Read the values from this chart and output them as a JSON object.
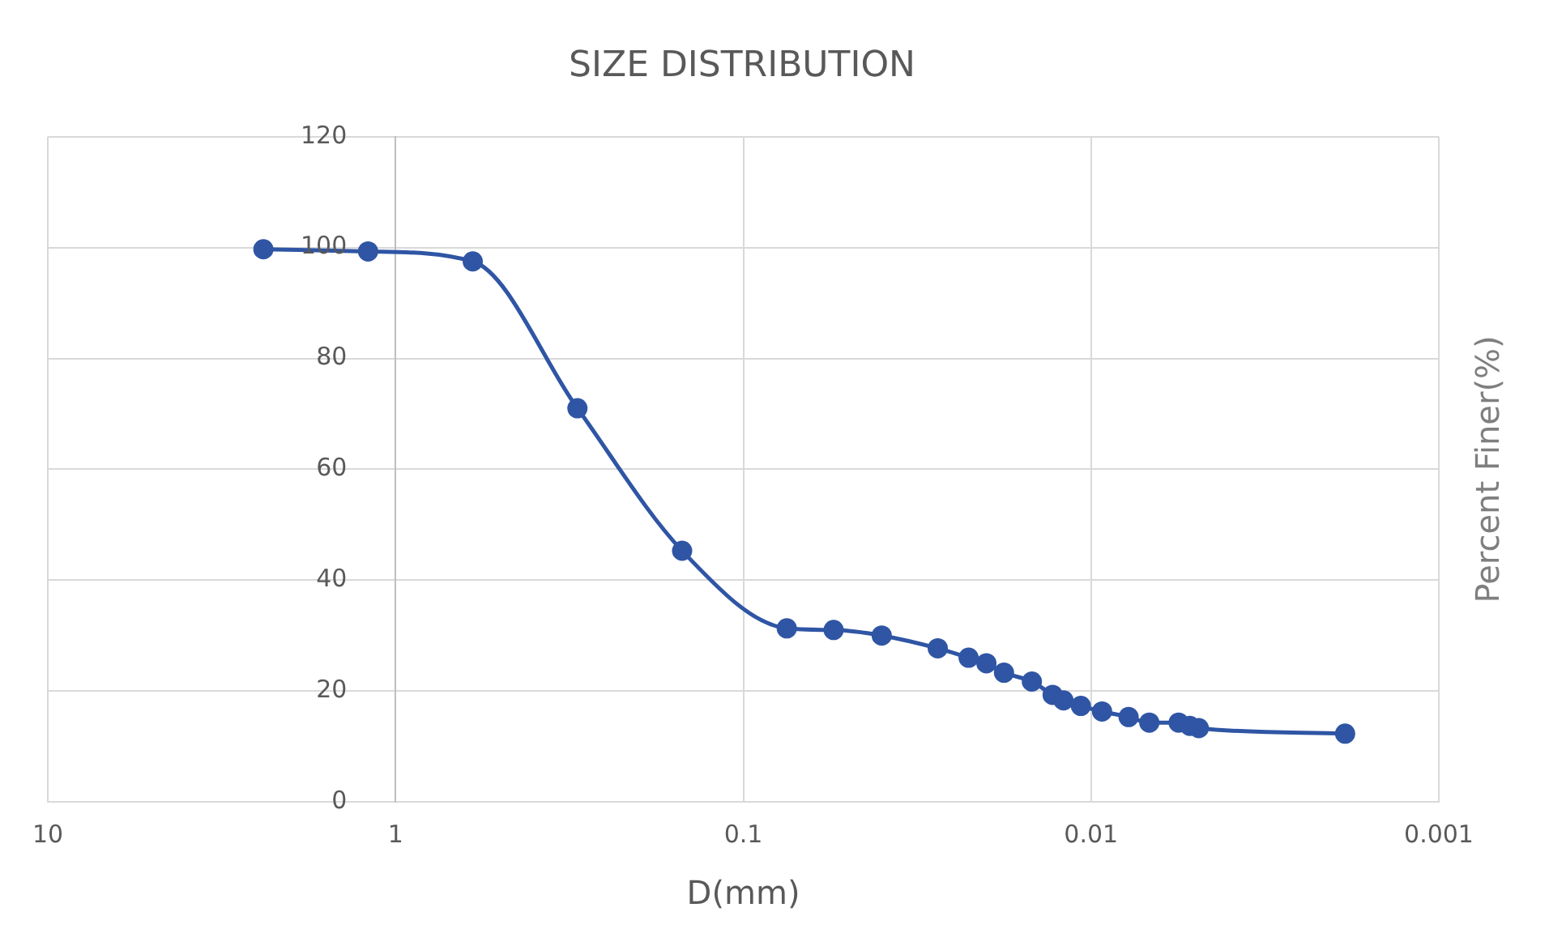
{
  "chart_data": {
    "type": "line",
    "title": "SIZE DISTRIBUTION",
    "xlabel": "D(mm)",
    "ylabel": "Percent Finer(%)",
    "x": [
      2.4,
      1.2,
      0.6,
      0.3,
      0.15,
      0.075,
      0.055,
      0.04,
      0.0276,
      0.0225,
      0.02,
      0.0178,
      0.0148,
      0.0129,
      0.012,
      0.0107,
      0.0093,
      0.0078,
      0.0068,
      0.0056,
      0.0052,
      0.0049,
      0.00186
    ],
    "series": [
      {
        "color": "#2f55a4",
        "values": [
          99.7,
          99.3,
          97.5,
          71,
          45.3,
          31.3,
          31,
          30,
          27.7,
          26,
          25,
          23.3,
          21.7,
          19.3,
          18.3,
          17.3,
          16.3,
          15.3,
          14.3,
          14.3,
          13.7,
          13.3,
          12.3
        ]
      }
    ],
    "log": "x",
    "xlim": [
      10,
      0.001
    ],
    "xticks": [
      10,
      1,
      0.1,
      0.01,
      0.001
    ],
    "ylim": [
      0,
      120
    ],
    "yticks": [
      0,
      20,
      40,
      60,
      80,
      100,
      120
    ],
    "grid": true,
    "legend": false,
    "marker": "circle",
    "line_style": "solid"
  }
}
